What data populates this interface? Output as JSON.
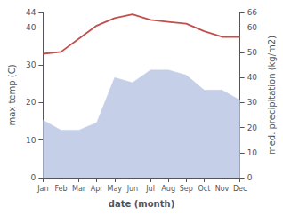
{
  "chart_data": {
    "type": "line",
    "xlabel": "date (month)",
    "ylabel": "max temp (C)",
    "y2label": "med. precipitation (kg/m2)",
    "categories": [
      "Jan",
      "Feb",
      "Mar",
      "Apr",
      "May",
      "Jun",
      "Jul",
      "Aug",
      "Sep",
      "Oct",
      "Nov",
      "Dec"
    ],
    "series": [
      {
        "type": "area",
        "color": "#c5cfe8",
        "axis": "y2",
        "values": [
          23,
          19,
          19,
          22,
          40,
          38,
          43,
          43,
          41,
          35,
          35,
          31
        ]
      },
      {
        "type": "line",
        "color": "#c0504d",
        "values": [
          33,
          33.5,
          37,
          40.5,
          42.5,
          43.5,
          42,
          41.5,
          41,
          39,
          37.5,
          37.5
        ]
      }
    ],
    "ylim": [
      0,
      44
    ],
    "yticks": [
      0,
      10,
      20,
      30,
      40
    ],
    "y2lim": [
      0,
      66
    ],
    "y2ticks": [
      0,
      10,
      20,
      30,
      40,
      50,
      60
    ],
    "grid": false
  }
}
